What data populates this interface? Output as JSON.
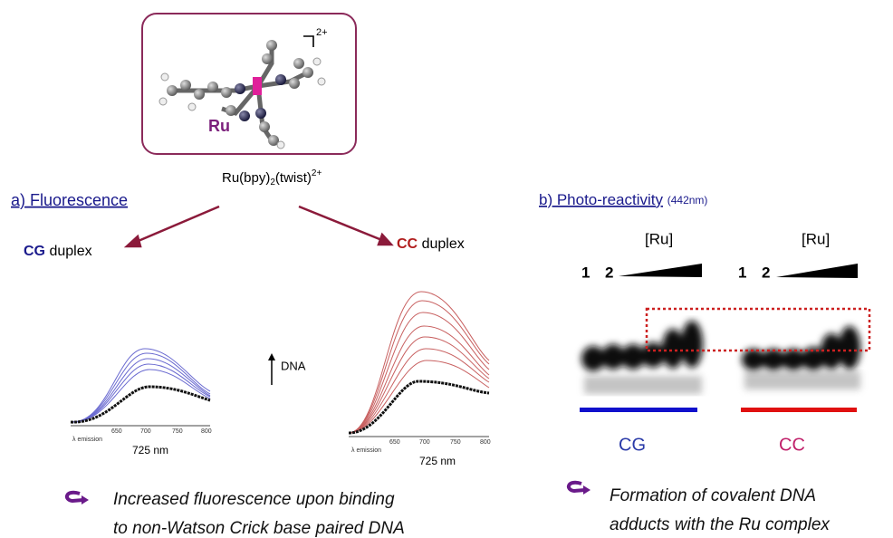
{
  "complex": {
    "metal_label": "Ru",
    "charge": "2+",
    "formula": {
      "part1": "Ru(bpy)",
      "sub": "2",
      "part2": "(twist)",
      "sup": "2+"
    }
  },
  "panel_a": {
    "title": "a) Fluorescence",
    "cg_label": {
      "strong": "CG",
      "rest": "duplex"
    },
    "cc_label": {
      "strong": "CC",
      "rest": "duplex"
    },
    "dna_label": "DNA",
    "plot_left": {
      "axis_label": "λ emission",
      "ticks": [
        "650",
        "700",
        "750",
        "800"
      ],
      "wavelength": "725 nm"
    },
    "plot_right": {
      "axis_label": "λ emission",
      "ticks": [
        "650",
        "700",
        "750",
        "800"
      ],
      "wavelength": "725 nm"
    },
    "caption": [
      "Increased fluorescence upon binding",
      "to non-Watson Crick base paired DNA"
    ]
  },
  "panel_b": {
    "title": "b) Photo-reactivity",
    "subtitle": "(442nm)",
    "gel_left": {
      "conc_label": "[Ru]",
      "lane1": "1",
      "lane2": "2",
      "name": "CG"
    },
    "gel_right": {
      "conc_label": "[Ru]",
      "lane1": "1",
      "lane2": "2",
      "name": "CC"
    },
    "caption": [
      "Formation of covalent DNA",
      "adducts with the Ru complex"
    ]
  }
}
